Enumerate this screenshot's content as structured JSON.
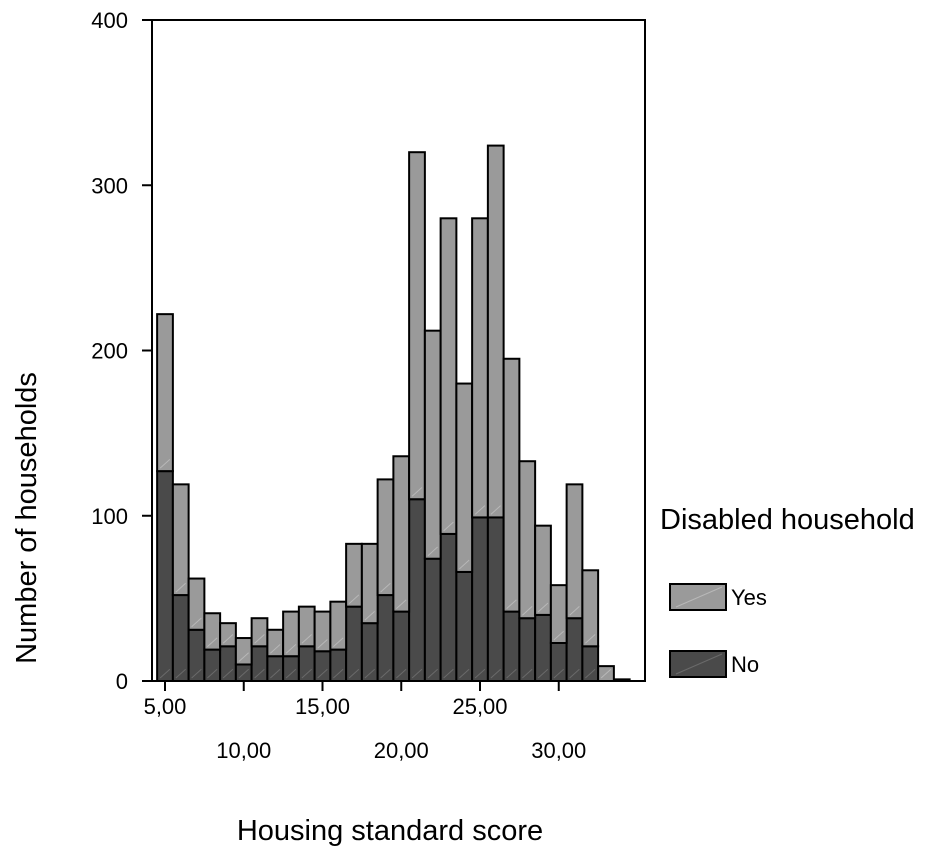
{
  "chart_data": {
    "type": "bar",
    "stacked": true,
    "xlabel": "Housing standard score",
    "ylabel": "Number of households",
    "ylim": [
      0,
      400
    ],
    "yticks": [
      0,
      100,
      200,
      300,
      400
    ],
    "xlim": [
      4.5,
      35
    ],
    "xticks_upper": [
      "5,00",
      "15,00",
      "25,00"
    ],
    "xticks_lower": [
      "10,00",
      "20,00",
      "30,00"
    ],
    "bin_width": 1,
    "x": [
      5,
      6,
      7,
      8,
      9,
      10,
      11,
      12,
      13,
      14,
      15,
      16,
      17,
      18,
      19,
      20,
      21,
      22,
      23,
      24,
      25,
      26,
      27,
      28,
      29,
      30,
      31,
      32,
      33,
      34
    ],
    "series": [
      {
        "name": "No",
        "color": "#4a4a4a",
        "values": [
          127,
          52,
          31,
          19,
          21,
          10,
          21,
          15,
          15,
          21,
          18,
          19,
          45,
          35,
          52,
          42,
          110,
          74,
          89,
          66,
          99,
          99,
          42,
          38,
          40,
          23,
          38,
          21,
          0,
          1
        ]
      },
      {
        "name": "Yes",
        "color": "#9a9a9a",
        "values": [
          95,
          67,
          31,
          22,
          14,
          16,
          17,
          16,
          27,
          24,
          24,
          29,
          38,
          48,
          70,
          94,
          210,
          138,
          191,
          114,
          181,
          225,
          153,
          95,
          54,
          35,
          81,
          46,
          9,
          0
        ]
      }
    ],
    "legend": {
      "title": "Disabled household",
      "position": "right",
      "items": [
        "Yes",
        "No"
      ]
    }
  }
}
